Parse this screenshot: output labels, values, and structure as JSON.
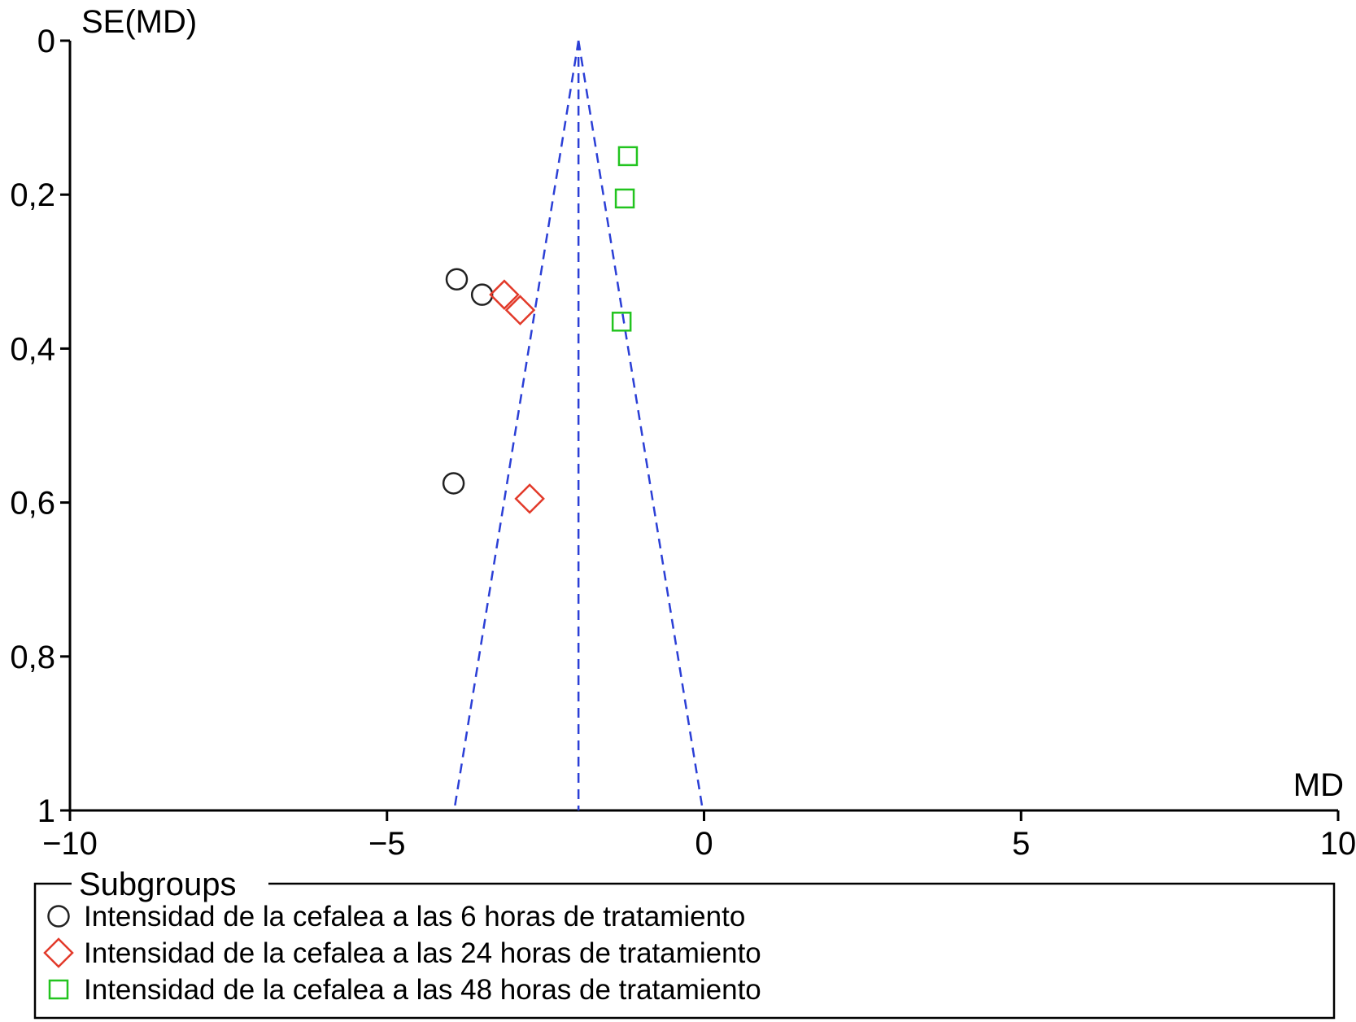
{
  "chart_data": {
    "type": "scatter",
    "subtype": "funnel-plot",
    "xlabel": "MD",
    "ylabel": "SE(MD)",
    "xlim": [
      -10,
      10
    ],
    "ylim": [
      0,
      1
    ],
    "y_inverted": true,
    "x_ticks": [
      -10,
      -5,
      0,
      5,
      10
    ],
    "x_tick_labels": [
      "−10",
      "−5",
      "0",
      "5",
      "10"
    ],
    "y_ticks": [
      0,
      0.2,
      0.4,
      0.6,
      0.8,
      1
    ],
    "y_tick_labels": [
      "0",
      "0,2",
      "0,4",
      "0,6",
      "0,8",
      "1"
    ],
    "grid": false,
    "pooled_estimate": -1.98,
    "funnel_color": "#2b3fd6",
    "series": [
      {
        "name": "Intensidad de la cefalea a las 6 horas de tratamiento",
        "marker": "circle",
        "color": "#222222",
        "points": [
          [
            -3.9,
            0.31
          ],
          [
            -3.5,
            0.33
          ],
          [
            -3.95,
            0.575
          ]
        ]
      },
      {
        "name": "Intensidad de la cefalea a las 24 horas de tratamiento",
        "marker": "diamond",
        "color": "#e23a2a",
        "points": [
          [
            -3.15,
            0.33
          ],
          [
            -2.9,
            0.35
          ],
          [
            -2.75,
            0.595
          ]
        ]
      },
      {
        "name": "Intensidad de la cefalea a las 48 horas de tratamiento",
        "marker": "square",
        "color": "#22c41f",
        "points": [
          [
            -1.2,
            0.15
          ],
          [
            -1.25,
            0.205
          ],
          [
            -1.3,
            0.365
          ]
        ]
      }
    ],
    "legend": {
      "title": "Subgroups",
      "placement": "bottom"
    }
  }
}
